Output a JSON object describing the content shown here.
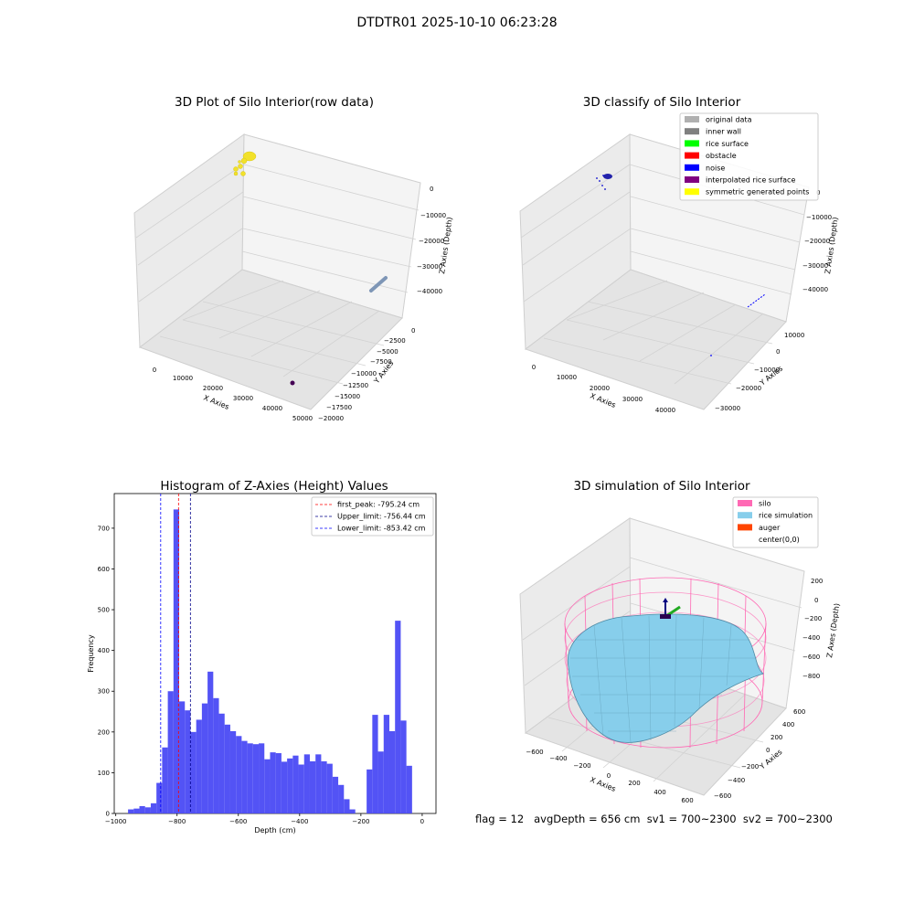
{
  "figure": {
    "suptitle": "DTDTR01 2025-10-10 06:23:28",
    "flag_line": "flag = 12   avgDepth = 656 cm  sv1 = 700~2300  sv2 = 700~2300"
  },
  "chart_data": [
    {
      "type": "scatter3d",
      "title": "3D Plot of Silo Interior(row data)",
      "xlabel": "X Axies",
      "ylabel": "Y Axies",
      "zlabel": "Z Axies (Depth)",
      "x_ticks": [
        "0",
        "10000",
        "20000",
        "30000",
        "40000",
        "50000"
      ],
      "y_ticks": [
        "−20000",
        "−17500",
        "−15000",
        "−12500",
        "−10000",
        "−7500",
        "−5000",
        "−2500",
        "0"
      ],
      "z_ticks": [
        "−40000",
        "−30000",
        "−20000",
        "−10000",
        "0"
      ],
      "colors": {
        "points_a": "#f2e12a",
        "points_b": "#7e96b6",
        "points_c": "#440154"
      }
    },
    {
      "type": "scatter3d",
      "title": "3D classify of Silo Interior",
      "xlabel": "X Axies",
      "ylabel": "Y Axies",
      "zlabel": "Z Axies (Depth)",
      "x_ticks": [
        "0",
        "10000",
        "20000",
        "30000",
        "40000"
      ],
      "y_ticks": [
        "−30000",
        "−20000",
        "−10000",
        "0",
        "10000"
      ],
      "z_ticks": [
        "−40000",
        "−30000",
        "−20000",
        "−10000",
        "0"
      ],
      "legend": [
        {
          "label": "original data",
          "color": "#b0b0b0"
        },
        {
          "label": "inner wall",
          "color": "#808080"
        },
        {
          "label": "rice surface",
          "color": "#00ff00"
        },
        {
          "label": "obstacle",
          "color": "#ff0000"
        },
        {
          "label": "noise",
          "color": "#0000ff"
        },
        {
          "label": "interpolated rice surface",
          "color": "#800080"
        },
        {
          "label": "symmetric generated points",
          "color": "#ffff00"
        }
      ]
    },
    {
      "type": "bar",
      "title": "Histogram of Z-Axies (Height) Values",
      "xlabel": "Depth (cm)",
      "ylabel": "Frequency",
      "xlim": [
        -1005,
        45
      ],
      "ylim": [
        0,
        785
      ],
      "x_ticks": [
        -1000,
        -800,
        -600,
        -400,
        -200,
        0
      ],
      "x_tick_labels": [
        "−1000",
        "−800",
        "−600",
        "−400",
        "−200",
        "0"
      ],
      "y_ticks": [
        0,
        100,
        200,
        300,
        400,
        500,
        600,
        700
      ],
      "bar_color": "#4a4af4",
      "bin_start": -960,
      "bin_width": 18.54,
      "values": [
        10,
        12,
        18,
        15,
        25,
        75,
        162,
        300,
        746,
        275,
        253,
        200,
        230,
        270,
        348,
        283,
        245,
        218,
        202,
        190,
        178,
        172,
        170,
        172,
        133,
        150,
        148,
        127,
        135,
        142,
        120,
        145,
        128,
        145,
        128,
        122,
        90,
        70,
        35,
        10,
        0,
        0,
        108,
        242,
        152,
        242,
        202,
        473,
        228,
        117
      ],
      "lines": [
        {
          "label": "first_peak: -795.24 cm",
          "x": -795.24,
          "color": "#ff0000"
        },
        {
          "label": "Upper_limit: -756.44 cm",
          "x": -756.44,
          "color": "#00008b"
        },
        {
          "label": "Lower_limit: -853.42 cm",
          "x": -853.42,
          "color": "#0000ff"
        }
      ]
    },
    {
      "type": "surface3d",
      "title": "3D simulation of Silo Interior",
      "xlabel": "X Axies",
      "ylabel": "Y Axies",
      "zlabel": "Z Axes (Depth)",
      "x_ticks": [
        "−600",
        "−400",
        "−200",
        "0",
        "200",
        "400",
        "600"
      ],
      "y_ticks": [
        "−600",
        "−400",
        "−200",
        "0",
        "200",
        "400",
        "600"
      ],
      "z_ticks": [
        "−800",
        "−600",
        "−400",
        "−200",
        "0",
        "200"
      ],
      "legend": [
        {
          "label": "silo",
          "color": "#ff69b4"
        },
        {
          "label": "rice simulation",
          "color": "#87ceeb"
        },
        {
          "label": "auger",
          "color": "#ff4500"
        },
        {
          "label": "center(0,0)",
          "color": "#ffffff"
        }
      ]
    }
  ]
}
